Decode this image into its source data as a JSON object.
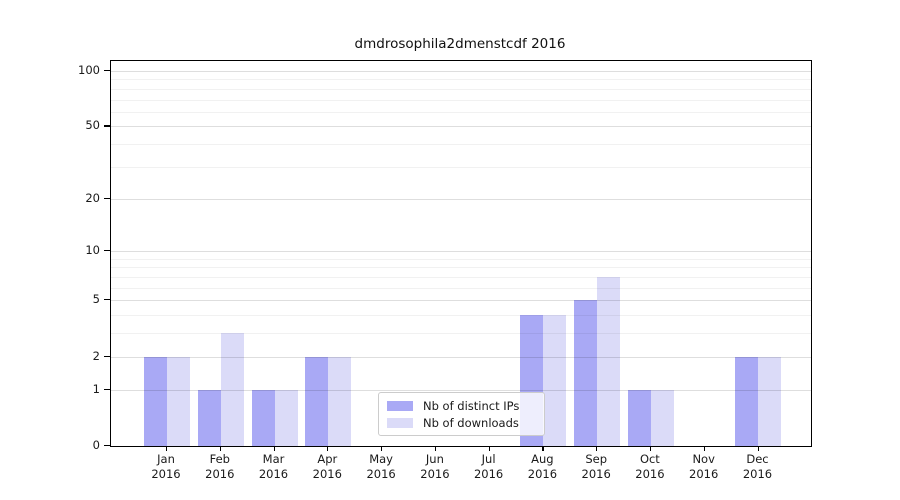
{
  "title": "dmdrosophila2dmenstcdf 2016",
  "chart_data": {
    "type": "bar",
    "title": "dmdrosophila2dmenstcdf 2016",
    "categories": [
      "Jan 2016",
      "Feb 2016",
      "Mar 2016",
      "Apr 2016",
      "May 2016",
      "Jun 2016",
      "Jul 2016",
      "Aug 2016",
      "Sep 2016",
      "Oct 2016",
      "Nov 2016",
      "Dec 2016"
    ],
    "series": [
      {
        "name": "Nb of distinct IPs",
        "color": "#a9a9f5",
        "values": [
          2,
          1,
          1,
          2,
          0,
          0,
          0,
          4,
          5,
          1,
          0,
          2
        ]
      },
      {
        "name": "Nb of downloads",
        "color": "#dbdbf8",
        "values": [
          2,
          3,
          1,
          2,
          0,
          0,
          0,
          4,
          7,
          1,
          0,
          2
        ]
      }
    ],
    "xlabel": "",
    "ylabel": "",
    "yscale": "log1p",
    "yticks": [
      0,
      1,
      2,
      5,
      10,
      20,
      50,
      100
    ],
    "minor_yticks": [
      3,
      4,
      6,
      7,
      8,
      9,
      30,
      40,
      60,
      70,
      80,
      90
    ],
    "ylim": [
      0,
      113
    ],
    "grid": true,
    "legend_position": "lower center"
  },
  "colors": {
    "bar_dark": "#a9a9f5",
    "bar_light": "#dbdbf8",
    "spine": "#000000",
    "grid_major": "#dedede",
    "grid_minor": "#efefef",
    "background": "#ffffff"
  }
}
